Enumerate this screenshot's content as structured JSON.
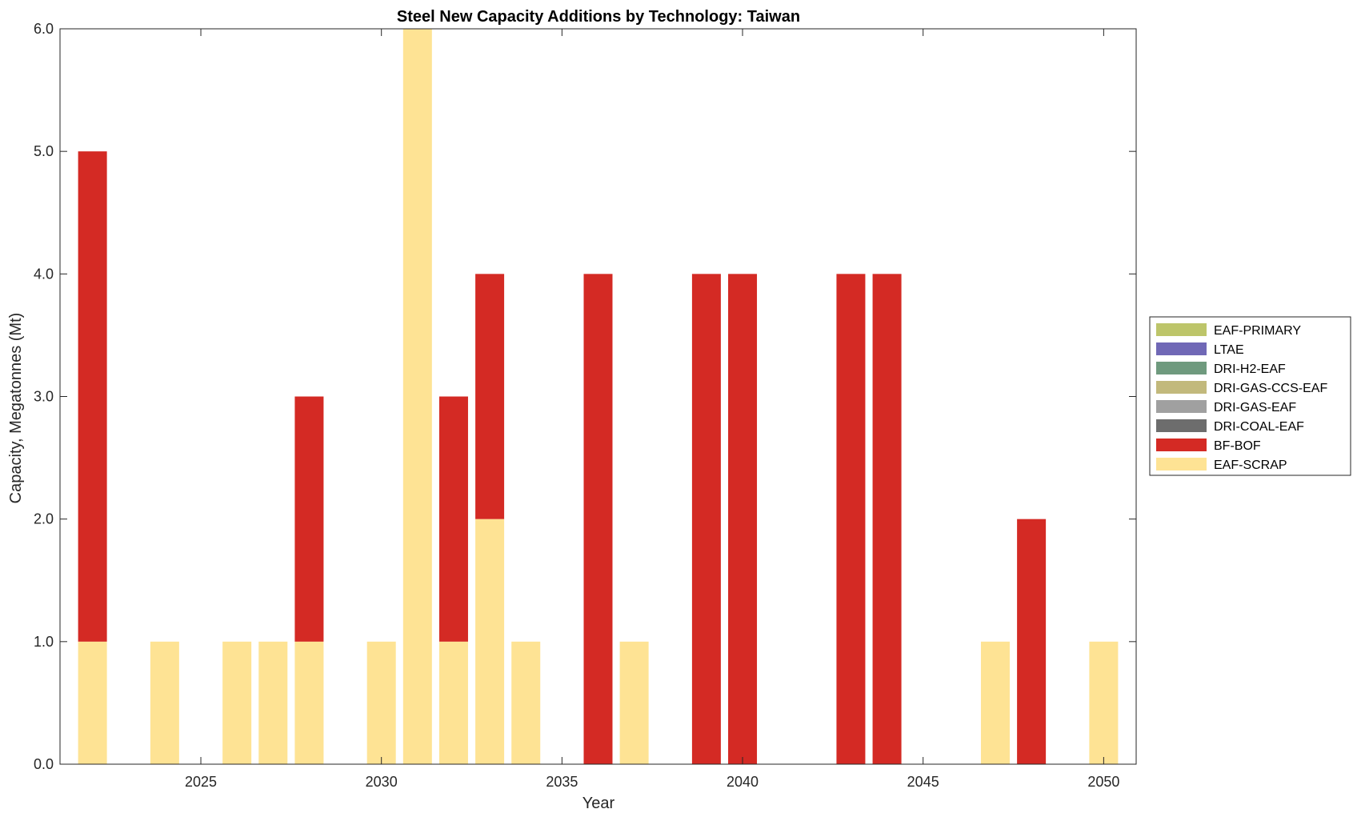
{
  "chart_data": {
    "type": "bar",
    "stacked": true,
    "title": "Steel New Capacity Additions by Technology: Taiwan",
    "xlabel": "Year",
    "ylabel": "Capacity, Megatonnes (Mt)",
    "xlim": [
      2021.1,
      2050.9
    ],
    "ylim": [
      0,
      6
    ],
    "xticks": [
      2025,
      2030,
      2035,
      2040,
      2045,
      2050
    ],
    "xtick_labels": [
      "2025",
      "2030",
      "2035",
      "2040",
      "2045",
      "2050"
    ],
    "yticks": [
      0,
      1,
      2,
      3,
      4,
      5,
      6
    ],
    "ytick_labels": [
      "0.0",
      "1.0",
      "2.0",
      "3.0",
      "4.0",
      "5.0",
      "6.0"
    ],
    "legend_position": "right",
    "categories": [
      2022,
      2023,
      2024,
      2025,
      2026,
      2027,
      2028,
      2029,
      2030,
      2031,
      2032,
      2033,
      2034,
      2035,
      2036,
      2037,
      2038,
      2039,
      2040,
      2041,
      2042,
      2043,
      2044,
      2045,
      2046,
      2047,
      2048,
      2049,
      2050
    ],
    "series": [
      {
        "name": "EAF-SCRAP",
        "color": "#FEE394",
        "values": [
          1,
          0,
          1,
          0,
          1,
          1,
          1,
          0,
          1,
          6,
          1,
          2,
          1,
          0,
          0,
          1,
          0,
          0,
          0,
          0,
          0,
          0,
          0,
          0,
          0,
          1,
          0,
          0,
          1
        ]
      },
      {
        "name": "BF-BOF",
        "color": "#D42A24",
        "values": [
          4,
          0,
          0,
          0,
          0,
          0,
          2,
          0,
          0,
          0,
          2,
          2,
          0,
          0,
          4,
          0,
          0,
          4,
          4,
          0,
          0,
          4,
          4,
          0,
          0,
          0,
          2,
          0,
          0
        ]
      },
      {
        "name": "DRI-COAL-EAF",
        "color": "#6D6D6D",
        "values": [
          0,
          0,
          0,
          0,
          0,
          0,
          0,
          0,
          0,
          0,
          0,
          0,
          0,
          0,
          0,
          0,
          0,
          0,
          0,
          0,
          0,
          0,
          0,
          0,
          0,
          0,
          0,
          0,
          0
        ]
      },
      {
        "name": "DRI-GAS-EAF",
        "color": "#A0A0A0",
        "values": [
          0,
          0,
          0,
          0,
          0,
          0,
          0,
          0,
          0,
          0,
          0,
          0,
          0,
          0,
          0,
          0,
          0,
          0,
          0,
          0,
          0,
          0,
          0,
          0,
          0,
          0,
          0,
          0,
          0
        ]
      },
      {
        "name": "DRI-GAS-CCS-EAF",
        "color": "#C2B97C",
        "values": [
          0,
          0,
          0,
          0,
          0,
          0,
          0,
          0,
          0,
          0,
          0,
          0,
          0,
          0,
          0,
          0,
          0,
          0,
          0,
          0,
          0,
          0,
          0,
          0,
          0,
          0,
          0,
          0,
          0
        ]
      },
      {
        "name": "DRI-H2-EAF",
        "color": "#6F9A7E",
        "values": [
          0,
          0,
          0,
          0,
          0,
          0,
          0,
          0,
          0,
          0,
          0,
          0,
          0,
          0,
          0,
          0,
          0,
          0,
          0,
          0,
          0,
          0,
          0,
          0,
          0,
          0,
          0,
          0,
          0
        ]
      },
      {
        "name": "LTAE",
        "color": "#7068B6",
        "values": [
          0,
          0,
          0,
          0,
          0,
          0,
          0,
          0,
          0,
          0,
          0,
          0,
          0,
          0,
          0,
          0,
          0,
          0,
          0,
          0,
          0,
          0,
          0,
          0,
          0,
          0,
          0,
          0,
          0
        ]
      },
      {
        "name": "EAF-PRIMARY",
        "color": "#BDC56A",
        "values": [
          0,
          0,
          0,
          0,
          0,
          0,
          0,
          0,
          0,
          0,
          0,
          0,
          0,
          0,
          0,
          0,
          0,
          0,
          0,
          0,
          0,
          0,
          0,
          0,
          0,
          0,
          0,
          0,
          0
        ]
      }
    ],
    "legend_order": [
      "EAF-PRIMARY",
      "LTAE",
      "DRI-H2-EAF",
      "DRI-GAS-CCS-EAF",
      "DRI-GAS-EAF",
      "DRI-COAL-EAF",
      "BF-BOF",
      "EAF-SCRAP"
    ]
  }
}
